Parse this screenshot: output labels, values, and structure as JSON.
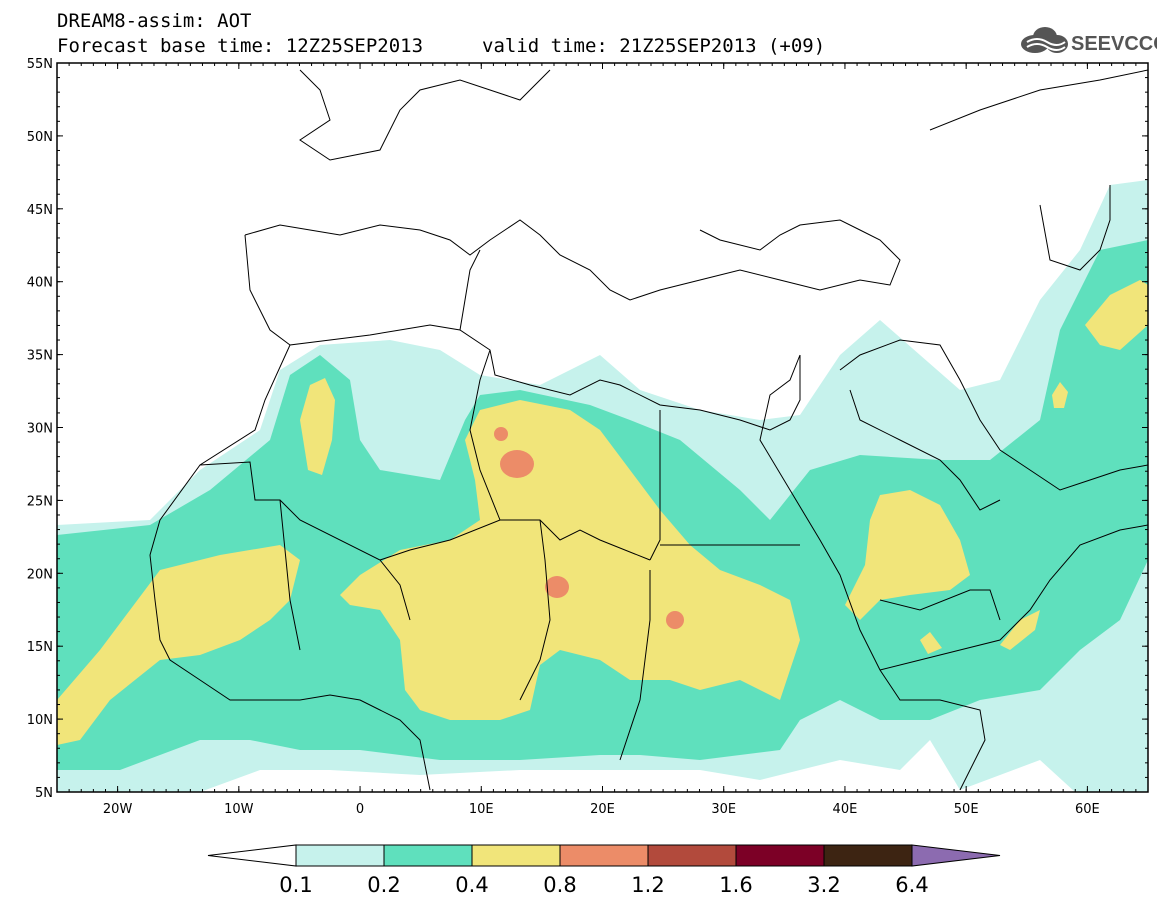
{
  "header": {
    "line1": "DREAM8-assim: AOT",
    "line2_left": "Forecast base time: 12Z25SEP2013",
    "line2_right": "valid time: 21Z25SEP2013 (+09)",
    "logo_text": "SEEVCCC"
  },
  "map": {
    "lon_range": [
      -25,
      65
    ],
    "lat_range": [
      5,
      55
    ],
    "lat_ticks": [
      "5N",
      "10N",
      "15N",
      "20N",
      "25N",
      "30N",
      "35N",
      "40N",
      "45N",
      "50N",
      "55N"
    ],
    "lon_ticks": [
      "20W",
      "10W",
      "0",
      "10E",
      "20E",
      "30E",
      "40E",
      "50E",
      "60E"
    ]
  },
  "legend": {
    "levels": [
      "0.1",
      "0.2",
      "0.4",
      "0.8",
      "1.2",
      "1.6",
      "3.2",
      "6.4"
    ],
    "colors": [
      "#ffffff",
      "#c6f2ec",
      "#5fe0bd",
      "#f1e57a",
      "#ec8c68",
      "#b24a3c",
      "#7c0026",
      "#3d2412",
      "#8c6bb0"
    ]
  }
}
